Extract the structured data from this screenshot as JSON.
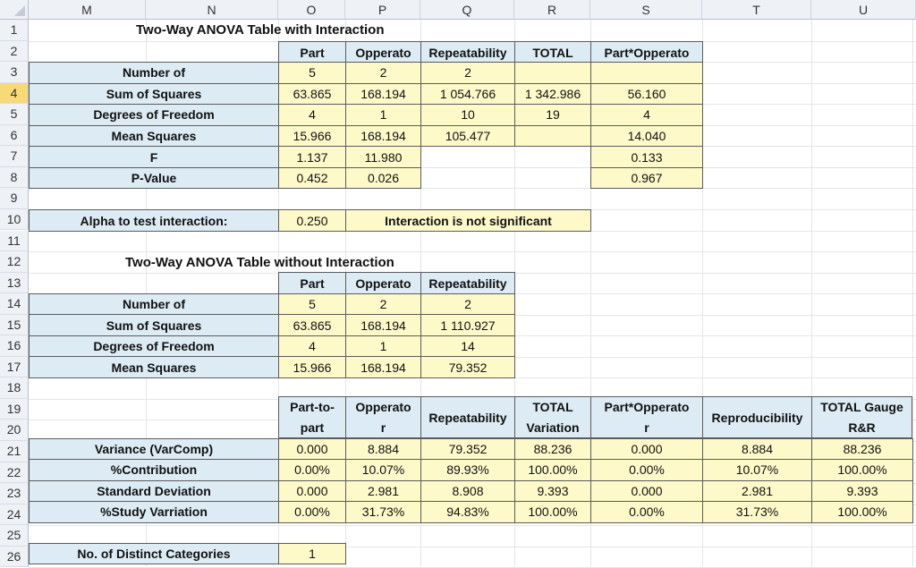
{
  "columns": [
    "M",
    "N",
    "O",
    "P",
    "Q",
    "R",
    "S",
    "T",
    "U"
  ],
  "rows": [
    "1",
    "2",
    "3",
    "4",
    "5",
    "6",
    "7",
    "8",
    "9",
    "10",
    "11",
    "12",
    "13",
    "14",
    "15",
    "16",
    "17",
    "18",
    "19",
    "20",
    "21",
    "22",
    "23",
    "24",
    "25",
    "26"
  ],
  "selected_row": "4",
  "table1": {
    "title": "Two-Way ANOVA Table with Interaction",
    "headers": [
      "Part",
      "Opperato",
      "Repeatability",
      "TOTAL",
      "Part*Opperato"
    ],
    "rows": [
      {
        "label": "Number of",
        "values": [
          "5",
          "2",
          "2",
          "",
          ""
        ]
      },
      {
        "label": "Sum of Squares",
        "values": [
          "63.865",
          "168.194",
          "1 054.766",
          "1 342.986",
          "56.160"
        ]
      },
      {
        "label": "Degrees of Freedom",
        "values": [
          "4",
          "1",
          "10",
          "19",
          "4"
        ]
      },
      {
        "label": "Mean Squares",
        "values": [
          "15.966",
          "168.194",
          "105.477",
          "",
          "14.040"
        ]
      },
      {
        "label": "F",
        "values": [
          "1.137",
          "11.980",
          "",
          "",
          "0.133"
        ]
      },
      {
        "label": "P-Value",
        "values": [
          "0.452",
          "0.026",
          "",
          "",
          "0.967"
        ]
      }
    ]
  },
  "alpha": {
    "label": "Alpha to test interaction:",
    "value": "0.250",
    "result": "Interaction is not significant"
  },
  "table2": {
    "title": "Two-Way ANOVA Table without Interaction",
    "headers": [
      "Part",
      "Opperato",
      "Repeatability"
    ],
    "rows": [
      {
        "label": "Number of",
        "values": [
          "5",
          "2",
          "2"
        ]
      },
      {
        "label": "Sum of Squares",
        "values": [
          "63.865",
          "168.194",
          "1 110.927"
        ]
      },
      {
        "label": "Degrees of Freedom",
        "values": [
          "4",
          "1",
          "14"
        ]
      },
      {
        "label": "Mean Squares",
        "values": [
          "15.966",
          "168.194",
          "79.352"
        ]
      }
    ]
  },
  "table3": {
    "headers": [
      {
        "line1": "Part-to-",
        "line2": "part"
      },
      {
        "line1": "Opperato",
        "line2": "r"
      },
      {
        "line1": "Repeatability",
        "line2": ""
      },
      {
        "line1": "TOTAL",
        "line2": "Variation"
      },
      {
        "line1": "Part*Opperato",
        "line2": "r"
      },
      {
        "line1": "Reproducibility",
        "line2": ""
      },
      {
        "line1": "TOTAL Gauge",
        "line2": "R&R"
      }
    ],
    "rows": [
      {
        "label": "Variance (VarComp)",
        "values": [
          "0.000",
          "8.884",
          "79.352",
          "88.236",
          "0.000",
          "8.884",
          "88.236"
        ]
      },
      {
        "label": "%Contribution",
        "values": [
          "0.00%",
          "10.07%",
          "89.93%",
          "100.00%",
          "0.00%",
          "10.07%",
          "100.00%"
        ]
      },
      {
        "label": "Standard Deviation",
        "values": [
          "0.000",
          "2.981",
          "8.908",
          "9.393",
          "0.000",
          "2.981",
          "9.393"
        ]
      },
      {
        "label": "%Study Varriation",
        "values": [
          "0.00%",
          "31.73%",
          "94.83%",
          "100.00%",
          "0.00%",
          "31.73%",
          "100.00%"
        ]
      }
    ]
  },
  "ndc": {
    "label": "No. of Distinct Categories",
    "value": "1"
  }
}
